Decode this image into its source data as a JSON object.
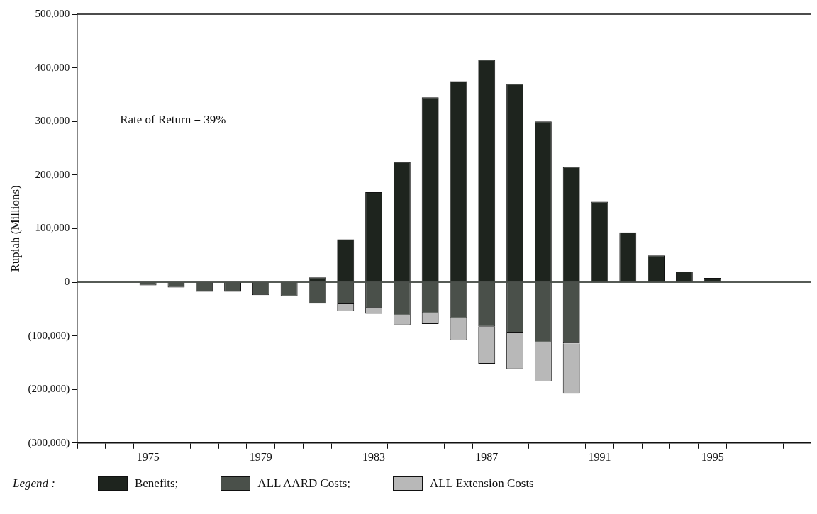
{
  "chart_data": {
    "type": "bar",
    "ylabel": "Rupiah (Millions)",
    "stacked": true,
    "legend": "bottom",
    "legend_title": "Legend :",
    "categories": [
      null,
      null,
      "1975",
      null,
      null,
      null,
      "1979",
      null,
      null,
      null,
      "1983",
      null,
      null,
      null,
      "1987",
      null,
      null,
      null,
      "1991",
      null,
      null,
      null,
      "1995",
      null,
      null,
      null
    ],
    "series": [
      {
        "name": "Benefits;",
        "color": "#1e241e",
        "values": [
          null,
          null,
          null,
          null,
          null,
          null,
          null,
          null,
          9000,
          80000,
          168000,
          224000,
          345000,
          375000,
          415000,
          370000,
          300000,
          215000,
          150000,
          93000,
          50000,
          20000,
          8000,
          null,
          null,
          null
        ]
      },
      {
        "name": "ALL AARD Costs;",
        "color": "#4a504a",
        "values": [
          null,
          null,
          -6000,
          -10000,
          -18000,
          -18000,
          -24000,
          -26000,
          -40000,
          -41000,
          -48000,
          -62000,
          -58000,
          -67000,
          -83000,
          -94000,
          -112000,
          -114000,
          null,
          null,
          null,
          null,
          null,
          null,
          null,
          null
        ]
      },
      {
        "name": "ALL Extension Costs",
        "color": "#b8b8b8",
        "values": [
          null,
          null,
          null,
          null,
          null,
          null,
          null,
          null,
          null,
          -13000,
          -11000,
          -18000,
          -20000,
          -41000,
          -69000,
          -68000,
          -73000,
          -94000,
          null,
          null,
          null,
          null,
          null,
          null,
          null,
          null
        ]
      }
    ],
    "ylim": [
      -300000,
      500000
    ],
    "yticks": [
      {
        "value": -300000,
        "label": "(300,000)"
      },
      {
        "value": -200000,
        "label": "(200,000)"
      },
      {
        "value": -100000,
        "label": "(100,000)"
      },
      {
        "value": 0,
        "label": "0"
      },
      {
        "value": 100000,
        "label": "100,000"
      },
      {
        "value": 200000,
        "label": "200,000"
      },
      {
        "value": 300000,
        "label": "300,000"
      },
      {
        "value": 400000,
        "label": "400,000"
      },
      {
        "value": 500000,
        "label": "500,000"
      }
    ],
    "ref_lines": [
      {
        "axis": "y",
        "value": 0,
        "color": "#1e241e"
      }
    ],
    "annotations": [
      "Rate of Return = 39%"
    ]
  }
}
